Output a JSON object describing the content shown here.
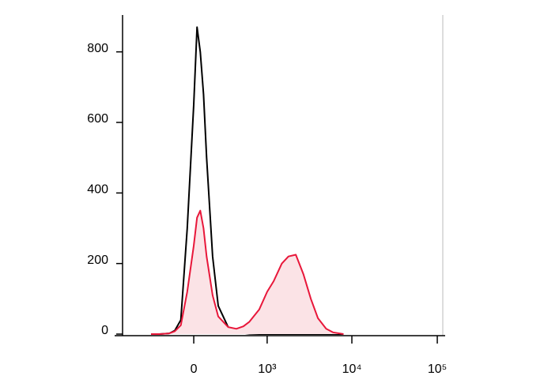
{
  "chart_data": {
    "type": "histogram-line",
    "xscale": "biexponential",
    "xlim": [
      -940,
      116000
    ],
    "xticks": [
      0,
      {
        "value": 1000,
        "label": "10³"
      },
      {
        "value": 10000,
        "label": "10⁴"
      },
      {
        "value": 100000,
        "label": "10⁵"
      }
    ],
    "ylim": [
      0,
      900
    ],
    "yticks": [
      0,
      200,
      400,
      600,
      800
    ],
    "x": [
      -400,
      -300,
      -200,
      -150,
      -100,
      -50,
      0,
      25,
      50,
      75,
      100,
      150,
      200,
      300,
      400,
      500,
      600,
      800,
      1000,
      1200,
      1500,
      1800,
      2200,
      2700,
      3300,
      4000,
      5000,
      6000,
      8000
    ],
    "series": [
      {
        "color": "#000000",
        "fill": "none",
        "values": [
          0,
          0,
          2,
          10,
          40,
          300,
          650,
          870,
          800,
          680,
          500,
          220,
          80,
          20,
          8,
          3,
          1,
          0,
          0,
          0,
          0,
          0,
          0,
          0,
          0,
          0,
          0,
          0,
          0
        ]
      },
      {
        "color": "#e8173a",
        "fill": "#fbe3e6",
        "values": [
          0,
          0,
          2,
          8,
          25,
          120,
          250,
          330,
          350,
          300,
          220,
          110,
          50,
          20,
          15,
          22,
          35,
          70,
          120,
          150,
          200,
          220,
          225,
          170,
          100,
          45,
          15,
          5,
          0
        ]
      }
    ]
  }
}
